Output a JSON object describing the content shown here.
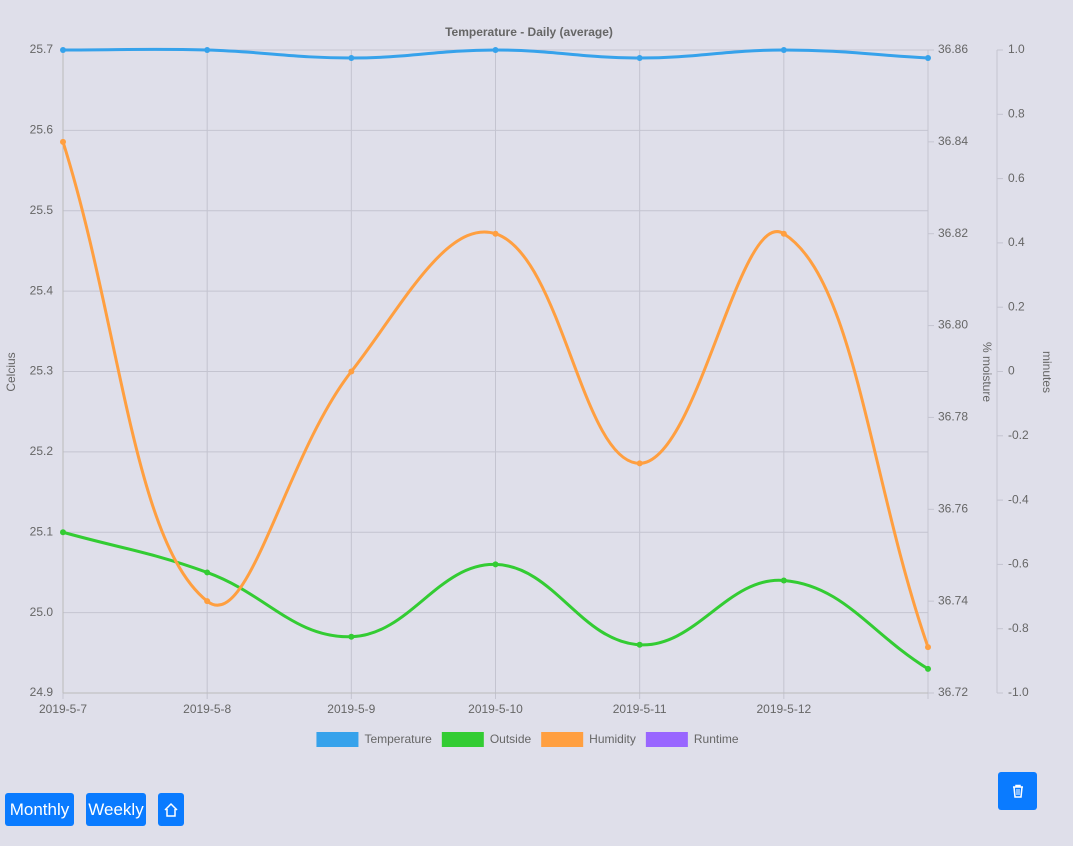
{
  "chart_data": {
    "type": "line",
    "title": "Temperature - Daily (average)",
    "categories": [
      "2019-5-7",
      "2019-5-8",
      "2019-5-9",
      "2019-5-10",
      "2019-5-11",
      "2019-5-12",
      null
    ],
    "y_label": "Celcius",
    "y2_label": "% moisture",
    "y3_label": "minutes",
    "series": [
      {
        "name": "Temperature",
        "color": "#36a2eb",
        "values": [
          25.7,
          25.7,
          25.69,
          25.7,
          25.69,
          25.7,
          25.69
        ]
      },
      {
        "name": "Outside",
        "color": "#33cc33",
        "values": [
          25.1,
          25.05,
          24.97,
          25.06,
          24.96,
          25.04,
          24.93
        ]
      },
      {
        "name": "Humidity",
        "color": "#ff9f40",
        "axis": "y2",
        "values": [
          36.84,
          36.74,
          36.79,
          36.82,
          36.77,
          36.82,
          36.73
        ]
      },
      {
        "name": "Runtime",
        "color": "#9966ff",
        "axis": "y3",
        "values": [
          null,
          null,
          null,
          null,
          null,
          null,
          null
        ]
      }
    ],
    "ylim": [
      24.9,
      25.7
    ],
    "yticks": [
      24.9,
      {
        "value": 25,
        "label": "25.0"
      },
      25.1,
      25.2,
      25.3,
      25.4,
      25.5,
      25.6,
      25.7
    ],
    "y2lim": [
      36.72,
      36.86
    ],
    "y2ticks": [
      36.72,
      36.74,
      36.76,
      36.78,
      {
        "value": 36.8,
        "label": "36.80"
      },
      36.82,
      36.84,
      36.86
    ],
    "y3lim": [
      -1,
      1
    ],
    "y3ticks": [
      {
        "value": -1,
        "label": "-1.0"
      },
      -0.8,
      -0.6,
      -0.4,
      -0.2,
      0,
      0.2,
      0.4,
      0.6,
      0.8,
      {
        "value": 1,
        "label": "1.0"
      }
    ],
    "grid": true,
    "legend": "bottom"
  },
  "buttons": [
    "Monthly",
    "Weekly"
  ]
}
